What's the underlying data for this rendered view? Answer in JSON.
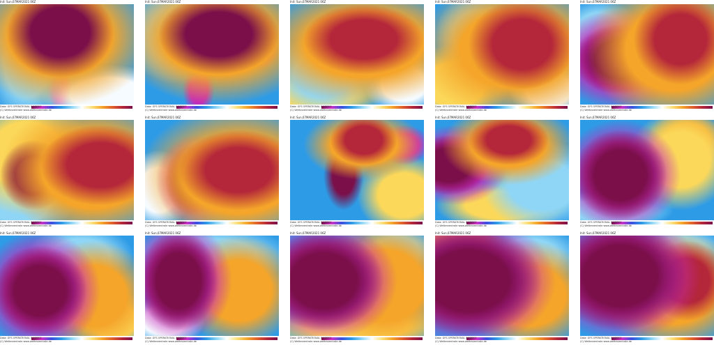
{
  "header": {
    "init": "Init: Sun,07MAR2021 06Z"
  },
  "footer": {
    "data": "Data: GFS OPERATIONAL 0.25DEG",
    "credit": "(C) Wetterzentrale www.wetterzentrale.de"
  }
}
